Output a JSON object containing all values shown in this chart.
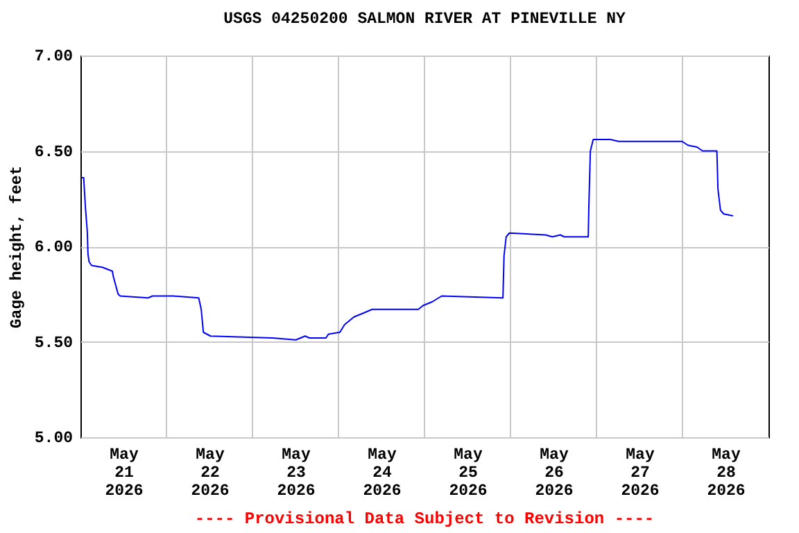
{
  "chart_data": {
    "type": "line",
    "title": "USGS 04250200 SALMON RIVER AT PINEVILLE NY",
    "ylabel": "Gage height, feet",
    "annotations": [
      "---- Provisional Data Subject to Revision ----"
    ],
    "x": [
      "2026-05-21T00:18",
      "2026-05-21T00:54",
      "2026-05-21T01:24",
      "2026-05-21T01:54",
      "2026-05-21T02:06",
      "2026-05-21T02:24",
      "2026-05-21T03:06",
      "2026-05-21T06:12",
      "2026-05-21T08:54",
      "2026-05-21T09:12",
      "2026-05-21T10:30",
      "2026-05-21T11:06",
      "2026-05-21T18:54",
      "2026-05-21T20:06",
      "2026-05-22T01:54",
      "2026-05-22T09:00",
      "2026-05-22T09:42",
      "2026-05-22T10:18",
      "2026-05-22T12:18",
      "2026-05-23T05:42",
      "2026-05-23T12:06",
      "2026-05-23T14:42",
      "2026-05-23T15:54",
      "2026-05-23T20:30",
      "2026-05-23T21:12",
      "2026-05-24T00:24",
      "2026-05-24T01:42",
      "2026-05-24T04:18",
      "2026-05-24T06:54",
      "2026-05-24T09:24",
      "2026-05-24T22:18",
      "2026-05-24T23:36",
      "2026-05-25T02:12",
      "2026-05-25T04:48",
      "2026-05-25T21:54",
      "2026-05-25T22:12",
      "2026-05-25T22:48",
      "2026-05-25T23:42",
      "2026-05-26T09:48",
      "2026-05-26T11:42",
      "2026-05-26T13:54",
      "2026-05-26T15:00",
      "2026-05-26T21:42",
      "2026-05-26T21:54",
      "2026-05-26T22:18",
      "2026-05-26T23:06",
      "2026-05-27T03:54",
      "2026-05-27T06:12",
      "2026-05-27T23:54",
      "2026-05-28T01:30",
      "2026-05-28T04:06",
      "2026-05-28T05:36",
      "2026-05-28T09:36",
      "2026-05-28T09:54",
      "2026-05-28T10:36",
      "2026-05-28T11:30",
      "2026-05-28T14:06"
    ],
    "series": [
      {
        "color": "#0000ff",
        "values": [
          6.36,
          6.36,
          6.2,
          6.08,
          5.96,
          5.92,
          5.9,
          5.89,
          5.87,
          5.84,
          5.75,
          5.74,
          5.73,
          5.74,
          5.74,
          5.73,
          5.67,
          5.55,
          5.53,
          5.52,
          5.51,
          5.53,
          5.52,
          5.52,
          5.54,
          5.55,
          5.59,
          5.63,
          5.65,
          5.67,
          5.67,
          5.69,
          5.71,
          5.74,
          5.73,
          5.95,
          6.05,
          6.07,
          6.06,
          6.05,
          6.06,
          6.05,
          6.05,
          6.23,
          6.5,
          6.56,
          6.56,
          6.55,
          6.55,
          6.53,
          6.52,
          6.5,
          6.5,
          6.3,
          6.19,
          6.17,
          6.16
        ]
      }
    ],
    "xlim": [
      "2026-05-21T00:00",
      "2026-05-29T00:00"
    ],
    "xticks": [
      {
        "value": "2026-05-21T12:00",
        "label": "May\n21\n2026"
      },
      {
        "value": "2026-05-22T00:00",
        "label": null
      },
      {
        "value": "2026-05-22T12:00",
        "label": "May\n22\n2026"
      },
      {
        "value": "2026-05-23T00:00",
        "label": null
      },
      {
        "value": "2026-05-23T12:00",
        "label": "May\n23\n2026"
      },
      {
        "value": "2026-05-24T00:00",
        "label": null
      },
      {
        "value": "2026-05-24T12:00",
        "label": "May\n24\n2026"
      },
      {
        "value": "2026-05-25T00:00",
        "label": null
      },
      {
        "value": "2026-05-25T12:00",
        "label": "May\n25\n2026"
      },
      {
        "value": "2026-05-26T00:00",
        "label": null
      },
      {
        "value": "2026-05-26T12:00",
        "label": "May\n26\n2026"
      },
      {
        "value": "2026-05-27T00:00",
        "label": null
      },
      {
        "value": "2026-05-27T12:00",
        "label": "May\n27\n2026"
      },
      {
        "value": "2026-05-28T00:00",
        "label": null
      },
      {
        "value": "2026-05-28T12:00",
        "label": "May\n28\n2026"
      }
    ],
    "ylim": [
      5,
      7
    ],
    "yticks": [
      {
        "value": 5,
        "label": "5.00"
      },
      {
        "value": 5.5,
        "label": "5.50"
      },
      {
        "value": 6,
        "label": "6.00"
      },
      {
        "value": 6.5,
        "label": "6.50"
      },
      {
        "value": 7,
        "label": "7.00"
      }
    ],
    "grid": true,
    "marker": "none",
    "line_style": "solid"
  }
}
